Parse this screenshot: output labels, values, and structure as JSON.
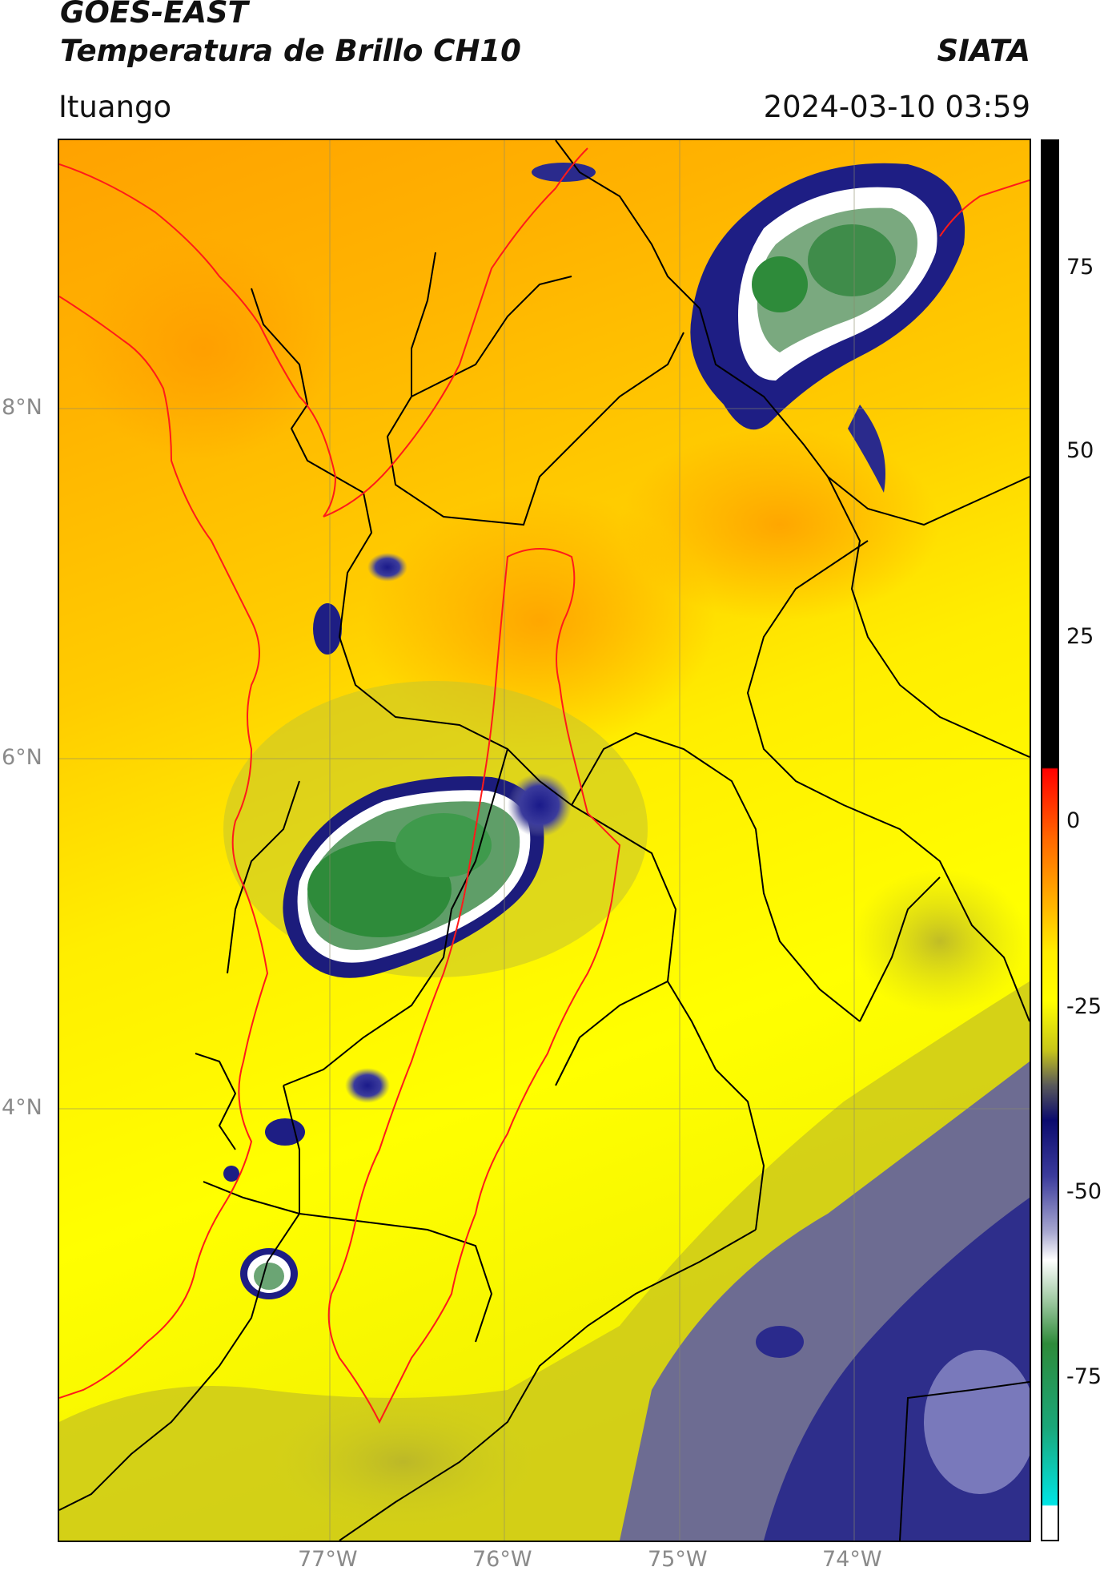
{
  "header": {
    "satellite": "GOES-EAST",
    "product": "Temperatura de Brillo CH10",
    "source": "SIATA",
    "region": "Ituango",
    "datetime": "2024-03-10 03:59"
  },
  "map": {
    "lat_ticks": [
      "8°N",
      "6°N",
      "4°N"
    ],
    "lon_ticks": [
      "77°W",
      "76°W",
      "75°W",
      "74°W"
    ],
    "extent": {
      "lon": [
        -78.55,
        -72.98
      ],
      "lat": [
        2.13,
        9.54
      ]
    }
  },
  "colorbar": {
    "ticks": [
      "75",
      "50",
      "25",
      "0",
      "-25",
      "-50",
      "-75"
    ],
    "range": [
      -92,
      92
    ],
    "colors": {
      "hot": "#000000",
      "warm": "#ff8c00",
      "mid": "#ffff00",
      "cold_blue": "#1a1a8c",
      "white": "#ffffff",
      "green": "#2e8b3a",
      "cyan": "#00e5e5"
    }
  }
}
